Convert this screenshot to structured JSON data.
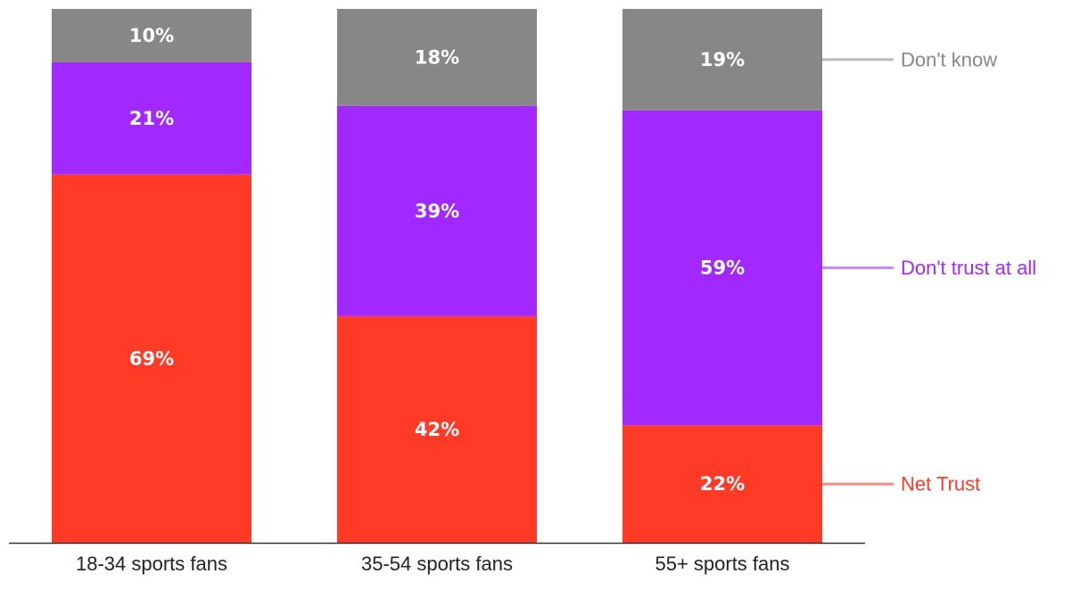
{
  "chart_data": {
    "type": "bar",
    "stacked": true,
    "categories": [
      "18-34 sports fans",
      "35-54 sports fans",
      "55+ sports fans"
    ],
    "series": [
      {
        "name": "Net Trust",
        "values": [
          69,
          42,
          22
        ],
        "labels": [
          "69%",
          "42%",
          "22%"
        ],
        "color": "#ff3b28",
        "legend_line_color": "#f28a84"
      },
      {
        "name": "Don't trust at all",
        "values": [
          21,
          39,
          59
        ],
        "labels": [
          "21%",
          "39%",
          "59%"
        ],
        "color": "#a128ff",
        "legend_line_color": "#c98af5"
      },
      {
        "name": "Don't know",
        "values": [
          10,
          18,
          19
        ],
        "labels": [
          "10%",
          "18%",
          "19%"
        ],
        "color": "#878787",
        "legend_line_color": "#b9b9b9"
      }
    ],
    "legend_placement": "right",
    "legend_text_colors": [
      "#ff3b28",
      "#a128ff",
      "#878787"
    ],
    "grid": false
  }
}
